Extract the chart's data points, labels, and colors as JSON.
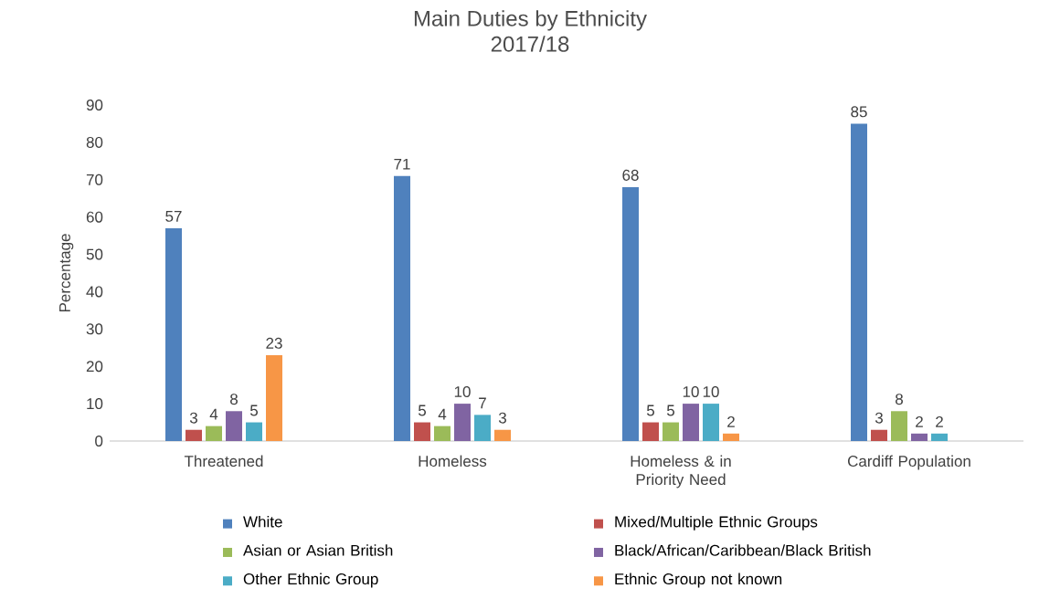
{
  "chart_data": {
    "type": "bar",
    "title": "Main Duties by Ethnicity",
    "subtitle": "2017/18",
    "ylabel": "Percentage",
    "categories": [
      "Threatened",
      "Homeless",
      "Homeless & in Priority Need",
      "Cardiff Population"
    ],
    "series": [
      {
        "name": "White",
        "color": "#4f81bd",
        "values": [
          57,
          71,
          68,
          85
        ]
      },
      {
        "name": "Mixed/Multiple Ethnic Groups",
        "color": "#c0504d",
        "values": [
          3,
          5,
          5,
          3
        ]
      },
      {
        "name": "Asian or Asian British",
        "color": "#9bbb59",
        "values": [
          4,
          4,
          5,
          8
        ]
      },
      {
        "name": "Black/African/Caribbean/Black British",
        "color": "#8064a2",
        "values": [
          8,
          10,
          10,
          2
        ]
      },
      {
        "name": "Other Ethnic Group",
        "color": "#4bacc6",
        "values": [
          5,
          7,
          10,
          2
        ]
      },
      {
        "name": "Ethnic Group not known",
        "color": "#f79646",
        "values": [
          23,
          3,
          2,
          null
        ]
      }
    ],
    "ylim": [
      0,
      90
    ],
    "yticks": [
      0,
      10,
      20,
      30,
      40,
      50,
      60,
      70,
      80,
      90
    ],
    "data_labels": true,
    "legend": "bottom",
    "grid": false
  }
}
